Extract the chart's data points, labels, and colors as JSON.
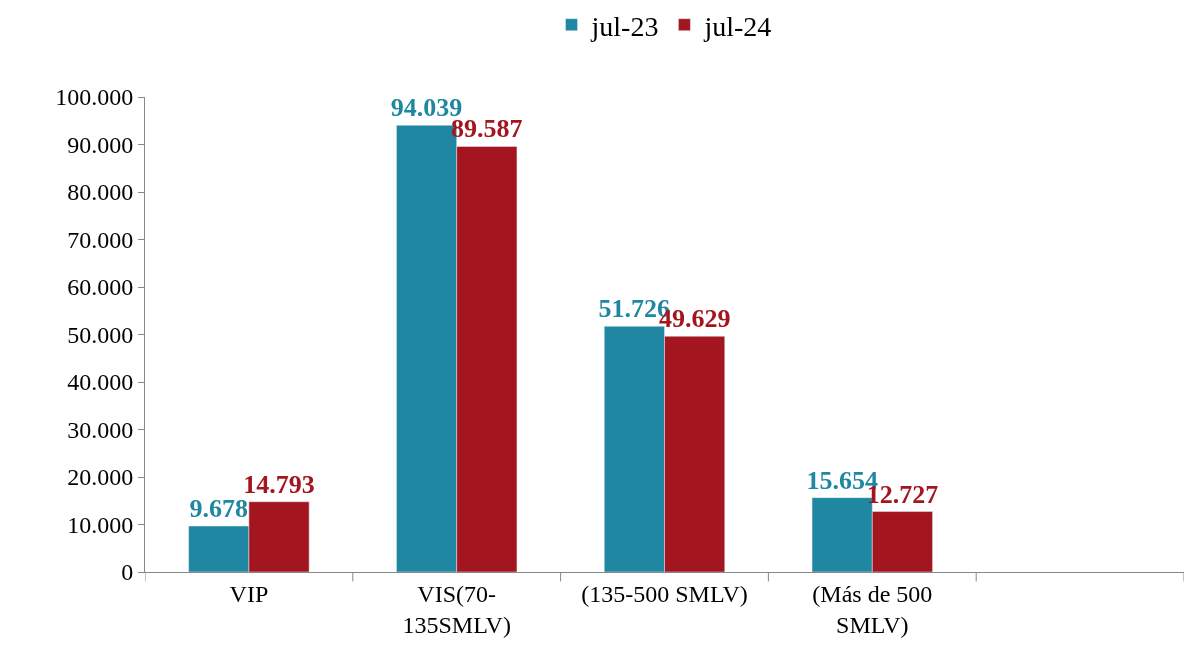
{
  "chart_data": {
    "type": "bar",
    "categories": [
      "VIP",
      "VIS(70-\n135SMLV)",
      "(135-500 SMLV)",
      "(Más de 500\nSMLV)",
      null
    ],
    "series": [
      {
        "name": "jul-23",
        "color": "#1f87a1",
        "values": [
          9678,
          94039,
          51726,
          15654,
          null
        ],
        "value_labels": [
          "9.678",
          "94.039",
          "51.726",
          "15.654",
          null
        ]
      },
      {
        "name": "jul-24",
        "color": "#a3161f",
        "values": [
          14793,
          89587,
          49629,
          12727,
          null
        ],
        "value_labels": [
          "14.793",
          "89.587",
          "49.629",
          "12.727",
          null
        ]
      }
    ],
    "ylim": [
      0,
      100000
    ],
    "yticks": [
      {
        "value": 0,
        "label": "0"
      },
      {
        "value": 10000,
        "label": "10.000"
      },
      {
        "value": 20000,
        "label": "20.000"
      },
      {
        "value": 30000,
        "label": "30.000"
      },
      {
        "value": 40000,
        "label": "40.000"
      },
      {
        "value": 50000,
        "label": "50.000"
      },
      {
        "value": 60000,
        "label": "60.000"
      },
      {
        "value": 70000,
        "label": "70.000"
      },
      {
        "value": 80000,
        "label": "80.000"
      },
      {
        "value": 90000,
        "label": "90.000"
      },
      {
        "value": 100000,
        "label": "100.000"
      }
    ],
    "legend": "top"
  }
}
